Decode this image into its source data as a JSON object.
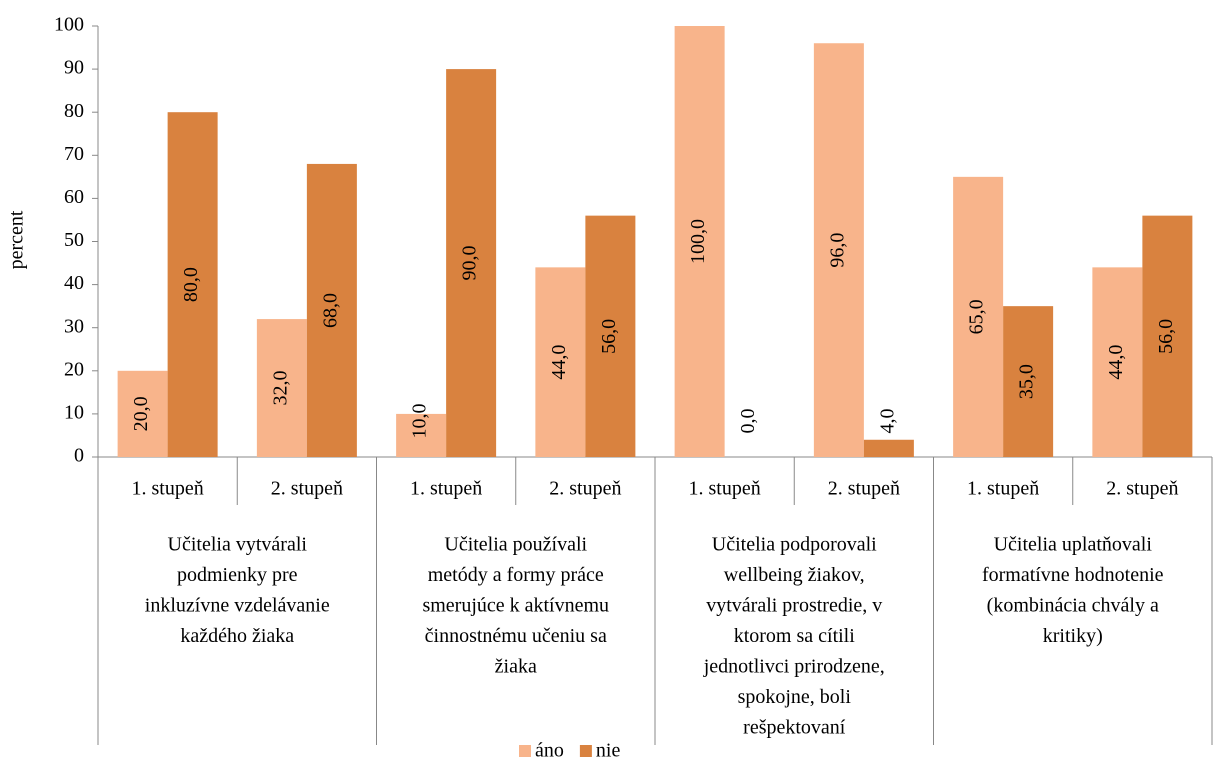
{
  "chart_data": {
    "type": "bar",
    "y_label": "percent",
    "categories": [
      "1. stupeň",
      "2. stupeň",
      "1. stupeň",
      "2. stupeň",
      "1. stupeň",
      "2. stupeň",
      "1. stupeň",
      "2. stupeň"
    ],
    "group_labels": [
      [
        "Učitelia vytvárali",
        "podmienky pre",
        "inkluzívne vzdelávanie",
        "každého žiaka"
      ],
      [
        "Učitelia používali",
        "metódy a formy práce",
        "smerujúce k aktívnemu",
        "činnostnému učeniu sa",
        "žiaka"
      ],
      [
        "Učitelia podporovali",
        "wellbeing žiakov,",
        "vytvárali prostredie, v",
        "ktorom sa cítili",
        "jednotlivci prirodzene,",
        "spokojne, boli",
        "rešpektovaní"
      ],
      [
        "Učitelia uplatňovali",
        "formatívne hodnotenie",
        "(kombinácia chvály a",
        "kritiky)"
      ]
    ],
    "series": [
      {
        "name": "áno",
        "color": "#f8b48b",
        "values": [
          20,
          32,
          10,
          44,
          100,
          96,
          65,
          44
        ],
        "value_labels": [
          "20,0",
          "32,0",
          "10,0",
          "44,0",
          "100,0",
          "96,0",
          "65,0",
          "44,0"
        ]
      },
      {
        "name": "nie",
        "color": "#d9823f",
        "values": [
          80,
          68,
          90,
          56,
          0,
          4,
          35,
          56
        ],
        "value_labels": [
          "80,0",
          "68,0",
          "90,0",
          "56,0",
          "0,0",
          "4,0",
          "35,0",
          "56,0"
        ]
      }
    ],
    "ylim": [
      0,
      100
    ],
    "yticks": [
      0,
      10,
      20,
      30,
      40,
      50,
      60,
      70,
      80,
      90,
      100
    ],
    "grid": false,
    "legend": "bottom"
  }
}
